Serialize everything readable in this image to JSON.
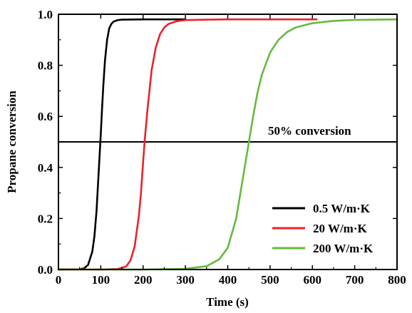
{
  "chart_data": {
    "type": "line",
    "xlabel": "Time (s)",
    "ylabel": "Propane conversion",
    "xlim": [
      0,
      800
    ],
    "ylim": [
      0.0,
      1.0
    ],
    "xticks": [
      0,
      100,
      200,
      300,
      400,
      500,
      600,
      700,
      800
    ],
    "yticks": [
      0.0,
      0.2,
      0.4,
      0.6,
      0.8,
      1.0
    ],
    "xtick_labels": [
      "0",
      "100",
      "200",
      "300",
      "400",
      "500",
      "600",
      "700",
      "800"
    ],
    "ytick_labels": [
      "0.0",
      "0.2",
      "0.4",
      "0.6",
      "0.8",
      "1.0"
    ],
    "grid": false,
    "legend_position": "bottom-right",
    "series": [
      {
        "name": "0.5 W/m·K",
        "color": "#000000",
        "x": [
          0,
          50,
          60,
          70,
          80,
          85,
          90,
          95,
          98,
          100,
          103,
          106,
          110,
          115,
          120,
          125,
          130,
          140,
          150,
          200,
          250,
          300
        ],
        "y": [
          0.0,
          0.001,
          0.004,
          0.018,
          0.07,
          0.13,
          0.23,
          0.38,
          0.47,
          0.53,
          0.63,
          0.72,
          0.82,
          0.9,
          0.945,
          0.962,
          0.971,
          0.977,
          0.979,
          0.98,
          0.98,
          0.98
        ]
      },
      {
        "name": "20 W/m·K",
        "color": "#e8232a",
        "x": [
          0,
          100,
          140,
          160,
          170,
          180,
          190,
          195,
          200,
          204,
          210,
          220,
          230,
          240,
          250,
          260,
          280,
          300,
          350,
          400,
          500,
          610
        ],
        "y": [
          0.0,
          0.0,
          0.002,
          0.012,
          0.035,
          0.09,
          0.21,
          0.3,
          0.42,
          0.51,
          0.62,
          0.78,
          0.87,
          0.922,
          0.948,
          0.962,
          0.973,
          0.977,
          0.979,
          0.98,
          0.98,
          0.98
        ]
      },
      {
        "name": "200 W/m·K",
        "color": "#67b93e",
        "x": [
          0,
          200,
          300,
          350,
          380,
          400,
          420,
          430,
          440,
          450,
          460,
          470,
          480,
          500,
          520,
          540,
          560,
          600,
          650,
          700,
          750,
          800
        ],
        "y": [
          0.0,
          0.0,
          0.003,
          0.013,
          0.04,
          0.085,
          0.2,
          0.3,
          0.4,
          0.5,
          0.6,
          0.69,
          0.76,
          0.85,
          0.9,
          0.93,
          0.948,
          0.965,
          0.974,
          0.978,
          0.979,
          0.98
        ]
      }
    ],
    "reference_line": {
      "y": 0.5,
      "label": "50% conversion",
      "color": "#000000"
    }
  }
}
